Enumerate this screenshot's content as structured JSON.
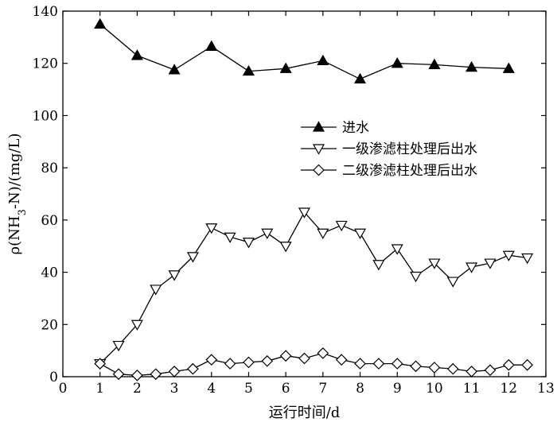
{
  "chart_data": {
    "type": "line",
    "xlabel": "运行时间/d",
    "ylabel": "ρ(NH3-N)/(mg/L)",
    "xlim": [
      0,
      13
    ],
    "ylim": [
      0,
      140
    ],
    "x_ticks": [
      0,
      1,
      2,
      3,
      4,
      5,
      6,
      7,
      8,
      9,
      10,
      11,
      12,
      13
    ],
    "y_ticks": [
      0,
      20,
      40,
      60,
      80,
      100,
      120,
      140
    ],
    "grid": false,
    "legend_position": "center-right",
    "series": [
      {
        "name": "进水",
        "marker": "triangle-up",
        "fill": "#000000",
        "x": [
          1,
          2,
          3,
          4,
          5,
          6,
          7,
          8,
          9,
          10,
          11,
          12
        ],
        "values": [
          135,
          123,
          117.5,
          126.5,
          117,
          118,
          121,
          114,
          120,
          119.5,
          118.5,
          118
        ]
      },
      {
        "name": "一级渗滤柱处理后出水",
        "marker": "triangle-down",
        "fill": "none",
        "x": [
          1,
          1.5,
          2,
          2.5,
          3,
          3.5,
          4,
          4.5,
          5,
          5.5,
          6,
          6.5,
          7,
          7.5,
          8,
          8.5,
          9,
          9.5,
          10,
          10.5,
          11,
          11.5,
          12,
          12.5
        ],
        "values": [
          5,
          12,
          20,
          33.5,
          39,
          46,
          57,
          53.5,
          51.5,
          55,
          50,
          63,
          55,
          58,
          55,
          43,
          49,
          38.5,
          43.5,
          36.5,
          42,
          43.5,
          46.5,
          45.5
        ]
      },
      {
        "name": "二级渗滤柱处理后出水",
        "marker": "diamond",
        "fill": "none",
        "x": [
          1,
          1.5,
          2,
          2.5,
          3,
          3.5,
          4,
          4.5,
          5,
          5.5,
          6,
          6.5,
          7,
          7.5,
          8,
          8.5,
          9,
          9.5,
          10,
          10.5,
          11,
          11.5,
          12,
          12.5
        ],
        "values": [
          5,
          1,
          0.5,
          1,
          2,
          3,
          6.5,
          5,
          5.5,
          6,
          8,
          7,
          9,
          6.5,
          5,
          5,
          5,
          4,
          3.5,
          3,
          2,
          2.5,
          4.5,
          4.5
        ]
      }
    ]
  }
}
